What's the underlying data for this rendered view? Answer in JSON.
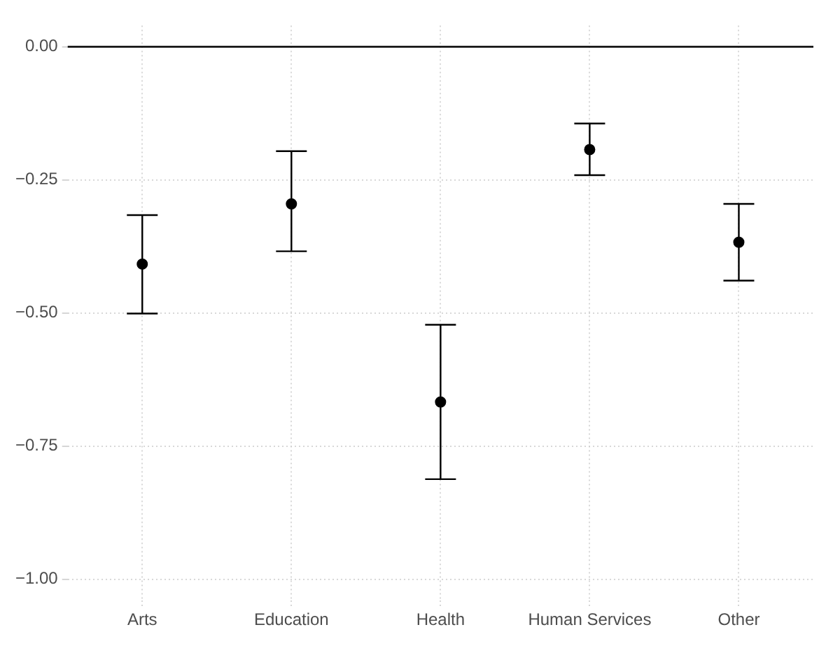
{
  "chart_data": {
    "type": "scatter",
    "categories": [
      "Arts",
      "Education",
      "Health",
      "Human Services",
      "Other"
    ],
    "values": [
      -0.408,
      -0.295,
      -0.667,
      -0.193,
      -0.367
    ],
    "errors": [
      [
        -0.501,
        -0.316
      ],
      [
        -0.384,
        -0.196
      ],
      [
        -0.812,
        -0.522
      ],
      [
        -0.241,
        -0.144
      ],
      [
        -0.439,
        -0.295
      ]
    ],
    "color": "#000000",
    "ylim": [
      -1.04,
      0.04
    ],
    "yticks": [
      {
        "value": 0,
        "label": "0.00"
      },
      {
        "value": -0.25,
        "label": "−0.25"
      },
      {
        "value": -0.5,
        "label": "−0.50"
      },
      {
        "value": -0.75,
        "label": "−0.75"
      },
      {
        "value": -1,
        "label": "−1.00"
      }
    ],
    "ref_lines": [
      {
        "axis": "y",
        "value": 0,
        "color": "#000000",
        "line_style": "solid"
      }
    ],
    "grid": true,
    "marker": "circle",
    "legend": false
  }
}
